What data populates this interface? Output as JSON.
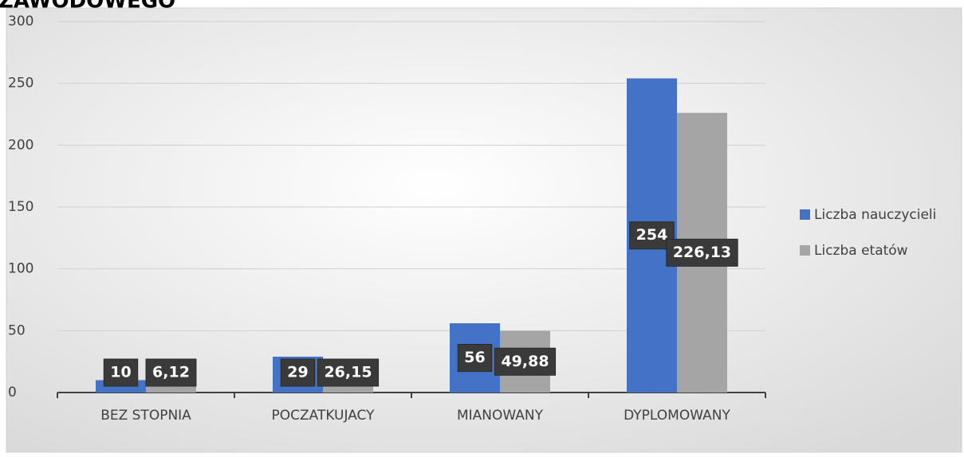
{
  "chart_data": {
    "type": "bar",
    "title": "ZAWODOWEGO",
    "categories": [
      "BEZ STOPNIA",
      "POCZATKUJACY",
      "MIANOWANY",
      "DYPLOMOWANY"
    ],
    "series": [
      {
        "name": "Liczba nauczycieli",
        "color": "#4472c4",
        "values": [
          10,
          29,
          56,
          254
        ],
        "value_labels": [
          "10",
          "29",
          "56",
          "254"
        ]
      },
      {
        "name": "Liczba etatów",
        "color": "#a5a5a5",
        "values": [
          6.12,
          26.15,
          49.88,
          226.13
        ],
        "value_labels": [
          "6,12",
          "26,15",
          "49,88",
          "226,13"
        ]
      }
    ],
    "ylim": [
      0,
      300
    ],
    "yticks": [
      0,
      50,
      100,
      150,
      200,
      250,
      300
    ],
    "grid": true,
    "legend": "right"
  }
}
